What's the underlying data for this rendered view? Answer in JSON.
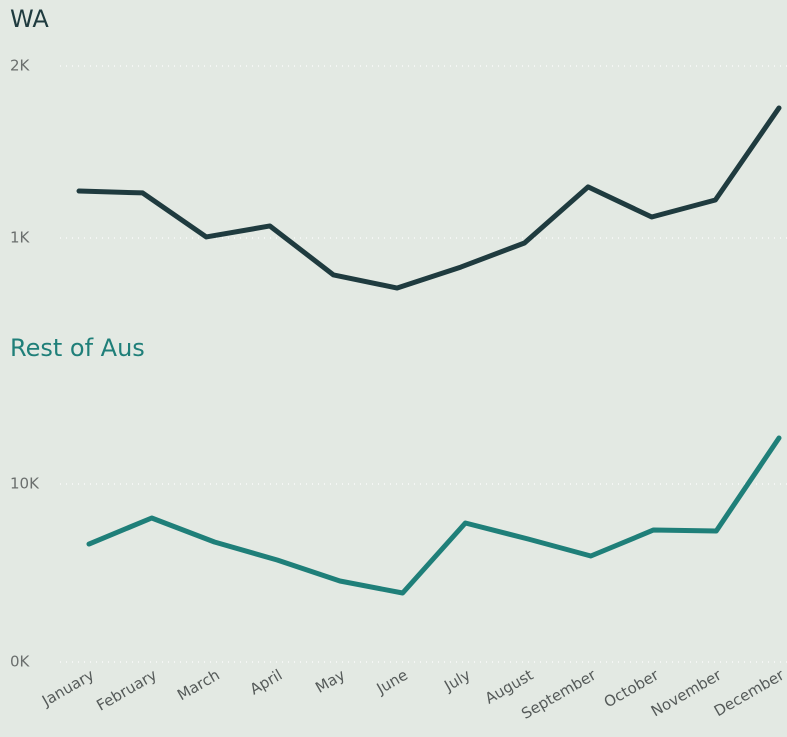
{
  "chart_data": [
    {
      "type": "line",
      "title": "WA",
      "color": "#1f3b3f",
      "values": [
        1273,
        1262,
        1006,
        1070,
        785,
        709,
        831,
        971,
        1297,
        1122,
        1221,
        1756
      ],
      "ylim": [
        700,
        2000
      ],
      "yticks": [
        {
          "value": 1000,
          "label": "1K"
        },
        {
          "value": 2000,
          "label": "2K"
        }
      ],
      "grid": true
    },
    {
      "type": "line",
      "title": "Rest of Aus",
      "color": "#1f7f79",
      "categories": [
        "January",
        "February",
        "March",
        "April",
        "May",
        "June",
        "July",
        "August",
        "September",
        "October",
        "November",
        "December"
      ],
      "values": [
        6629,
        8090,
        6742,
        5730,
        4551,
        3876,
        7809,
        6910,
        5955,
        7416,
        7360,
        12584
      ],
      "ylim": [
        0,
        13000
      ],
      "yticks": [
        {
          "value": 0,
          "label": "0K"
        },
        {
          "value": 10000,
          "label": "10K"
        }
      ],
      "grid": true
    }
  ]
}
